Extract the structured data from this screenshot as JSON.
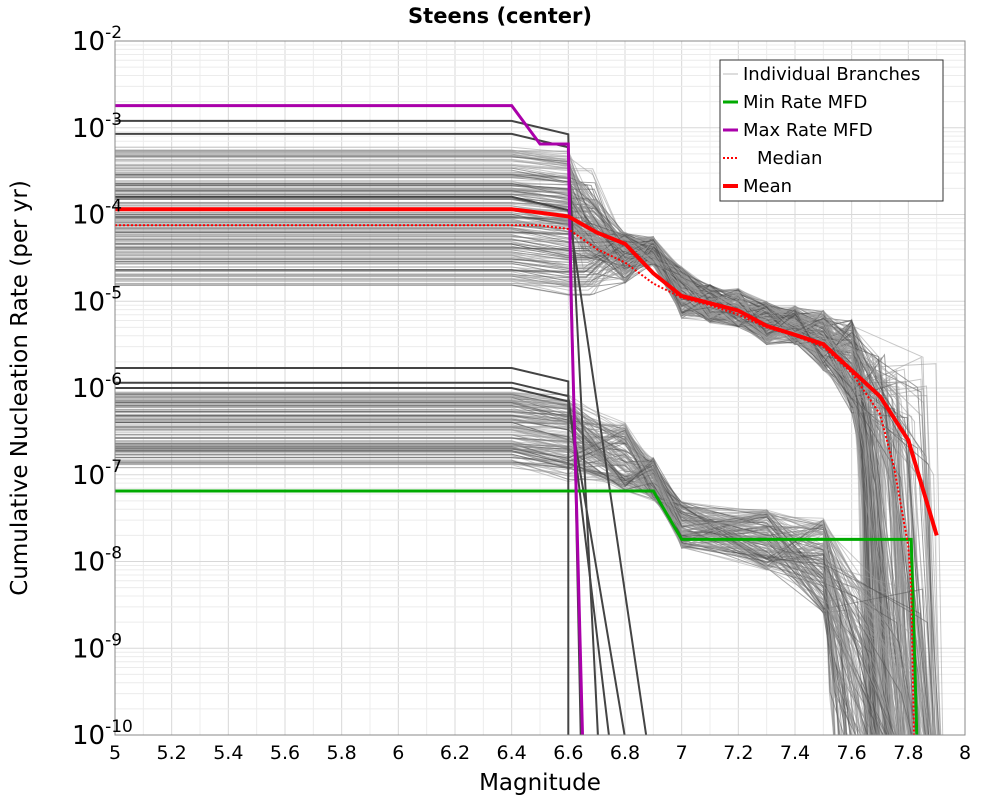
{
  "chart_data": {
    "type": "line",
    "title": "Steens (center)",
    "xlabel": "Magnitude",
    "ylabel": "Cumulative Nucleation Rate (per yr)",
    "xlim": [
      5,
      8
    ],
    "ylim": [
      1e-10,
      0.01
    ],
    "yscale": "log",
    "grid": true,
    "x_ticks": [
      "5",
      "5.2",
      "5.4",
      "5.6",
      "5.8",
      "6",
      "6.2",
      "6.4",
      "6.6",
      "6.8",
      "7",
      "7.2",
      "7.4",
      "7.6",
      "7.8",
      "8"
    ],
    "y_ticks": [
      {
        "base": "10",
        "exp": "-10"
      },
      {
        "base": "10",
        "exp": "-9"
      },
      {
        "base": "10",
        "exp": "-8"
      },
      {
        "base": "10",
        "exp": "-7"
      },
      {
        "base": "10",
        "exp": "-6"
      },
      {
        "base": "10",
        "exp": "-5"
      },
      {
        "base": "10",
        "exp": "-4"
      },
      {
        "base": "10",
        "exp": "-3"
      },
      {
        "base": "10",
        "exp": "-2"
      }
    ],
    "legend": {
      "position": "top-right",
      "entries": [
        {
          "label": "Individual Branches",
          "color": "#bbbbbb",
          "style": "solid-thin"
        },
        {
          "label": "Min Rate MFD",
          "color": "#00aa00",
          "style": "solid"
        },
        {
          "label": "Max Rate MFD",
          "color": "#aa00aa",
          "style": "solid"
        },
        {
          "label": "Median",
          "color": "#ff0000",
          "style": "dotted"
        },
        {
          "label": "Mean",
          "color": "#ff0000",
          "style": "solid-thick"
        }
      ]
    },
    "series": [
      {
        "name": "Min Rate MFD",
        "color": "#00aa00",
        "x": [
          5.0,
          6.6,
          6.9,
          7.0,
          7.8,
          7.81,
          7.83
        ],
        "y": [
          6.5e-08,
          6.5e-08,
          6.5e-08,
          1.8e-08,
          1.8e-08,
          1.8e-08,
          1e-10
        ]
      },
      {
        "name": "Max Rate MFD",
        "color": "#aa00aa",
        "x": [
          5.0,
          6.4,
          6.5,
          6.6,
          6.61,
          6.65
        ],
        "y": [
          0.0018,
          0.0018,
          0.00065,
          0.00065,
          1e-05,
          1e-10
        ]
      },
      {
        "name": "Median",
        "color": "#ff0000",
        "x": [
          5.0,
          6.5,
          6.6,
          6.7,
          6.8,
          6.9,
          7.0,
          7.1,
          7.2,
          7.3,
          7.4,
          7.5,
          7.6,
          7.7,
          7.75,
          7.8,
          7.81,
          7.82
        ],
        "y": [
          7.5e-05,
          7.5e-05,
          6.8e-05,
          4e-05,
          2.8e-05,
          1.6e-05,
          1.1e-05,
          9e-06,
          7e-06,
          5e-06,
          4e-06,
          3e-06,
          1.5e-06,
          5e-07,
          1.2e-07,
          1.5e-08,
          5e-09,
          1e-10
        ]
      },
      {
        "name": "Mean",
        "color": "#ff0000",
        "x": [
          5.0,
          6.4,
          6.5,
          6.6,
          6.7,
          6.8,
          6.9,
          7.0,
          7.1,
          7.2,
          7.3,
          7.4,
          7.5,
          7.6,
          7.7,
          7.8,
          7.9
        ],
        "y": [
          0.000115,
          0.000115,
          0.000105,
          9.5e-05,
          6.2e-05,
          4.6e-05,
          2.1e-05,
          1.15e-05,
          9.5e-06,
          7.8e-06,
          5.2e-06,
          4.1e-06,
          3.2e-06,
          1.6e-06,
          8e-07,
          2.5e-07,
          2e-08
        ]
      }
    ],
    "branch_groups": [
      {
        "name": "upper_branches",
        "rate_min": 1.5e-05,
        "rate_max": 0.0006
      },
      {
        "name": "lower_branches",
        "rate_min": 1.2e-07,
        "rate_max": 9e-07
      }
    ]
  }
}
